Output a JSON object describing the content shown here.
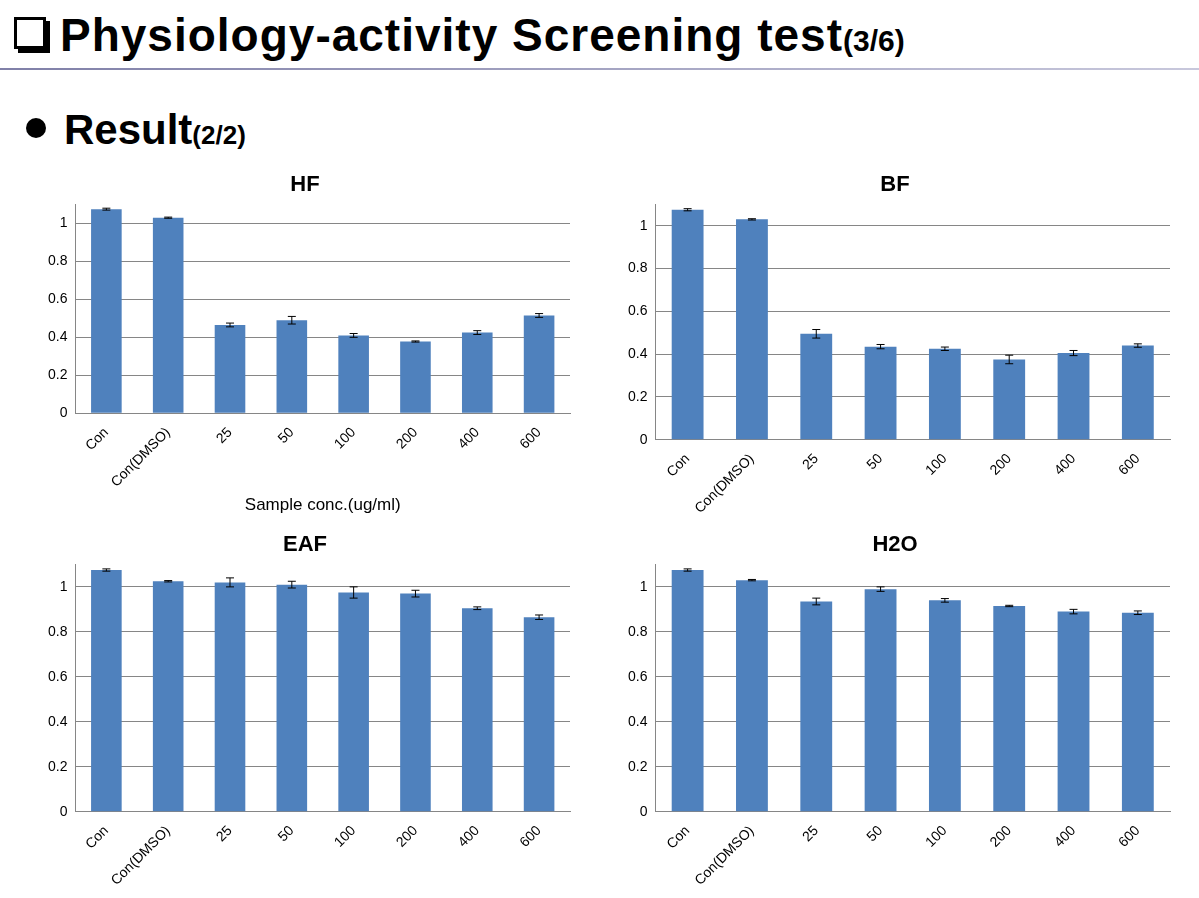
{
  "header": {
    "title": "Physiology-activity Screening test",
    "part": "(3/6)"
  },
  "section": {
    "title": "Result",
    "part": "(2/2)"
  },
  "chart_data": [
    {
      "type": "bar",
      "title": "HF",
      "x_label": "Sample conc.(ug/ml)",
      "categories": [
        "Con",
        "Con(DMSO)",
        "25",
        "50",
        "100",
        "200",
        "400",
        "600"
      ],
      "values": [
        1.075,
        1.03,
        0.465,
        0.49,
        0.41,
        0.378,
        0.425,
        0.515
      ],
      "errors": [
        0.005,
        0.003,
        0.01,
        0.02,
        0.01,
        0.003,
        0.01,
        0.01
      ],
      "color": "#4f81bd",
      "ylim": [
        0,
        1.1
      ],
      "yticks": [
        0,
        0.2,
        0.4,
        0.6,
        0.8,
        1
      ],
      "grid": true
    },
    {
      "type": "bar",
      "title": "BF",
      "categories": [
        "Con",
        "Con(DMSO)",
        "25",
        "50",
        "100",
        "200",
        "400",
        "600"
      ],
      "values": [
        1.075,
        1.03,
        0.495,
        0.435,
        0.425,
        0.375,
        0.405,
        0.44
      ],
      "errors": [
        0.005,
        0.003,
        0.02,
        0.01,
        0.008,
        0.02,
        0.012,
        0.008
      ],
      "color": "#4f81bd",
      "ylim": [
        0,
        1.1
      ],
      "yticks": [
        0,
        0.2,
        0.4,
        0.6,
        0.8,
        1
      ],
      "grid": true
    },
    {
      "type": "bar",
      "title": "EAF",
      "categories": [
        "Con",
        "Con(DMSO)",
        "25",
        "50",
        "100",
        "200",
        "400",
        "600"
      ],
      "values": [
        1.075,
        1.025,
        1.02,
        1.01,
        0.975,
        0.97,
        0.905,
        0.865
      ],
      "errors": [
        0.005,
        0.003,
        0.02,
        0.015,
        0.025,
        0.015,
        0.006,
        0.01
      ],
      "color": "#4f81bd",
      "ylim": [
        0,
        1.1
      ],
      "yticks": [
        0,
        0.2,
        0.4,
        0.6,
        0.8,
        1
      ],
      "grid": true
    },
    {
      "type": "bar",
      "title": "H2O",
      "categories": [
        "Con",
        "Con(DMSO)",
        "25",
        "50",
        "100",
        "200",
        "400",
        "600"
      ],
      "values": [
        1.075,
        1.03,
        0.935,
        0.99,
        0.94,
        0.915,
        0.89,
        0.885
      ],
      "errors": [
        0.005,
        0.003,
        0.015,
        0.01,
        0.008,
        0.003,
        0.01,
        0.008
      ],
      "color": "#4f81bd",
      "ylim": [
        0,
        1.1
      ],
      "yticks": [
        0,
        0.2,
        0.4,
        0.6,
        0.8,
        1
      ],
      "grid": true
    }
  ]
}
